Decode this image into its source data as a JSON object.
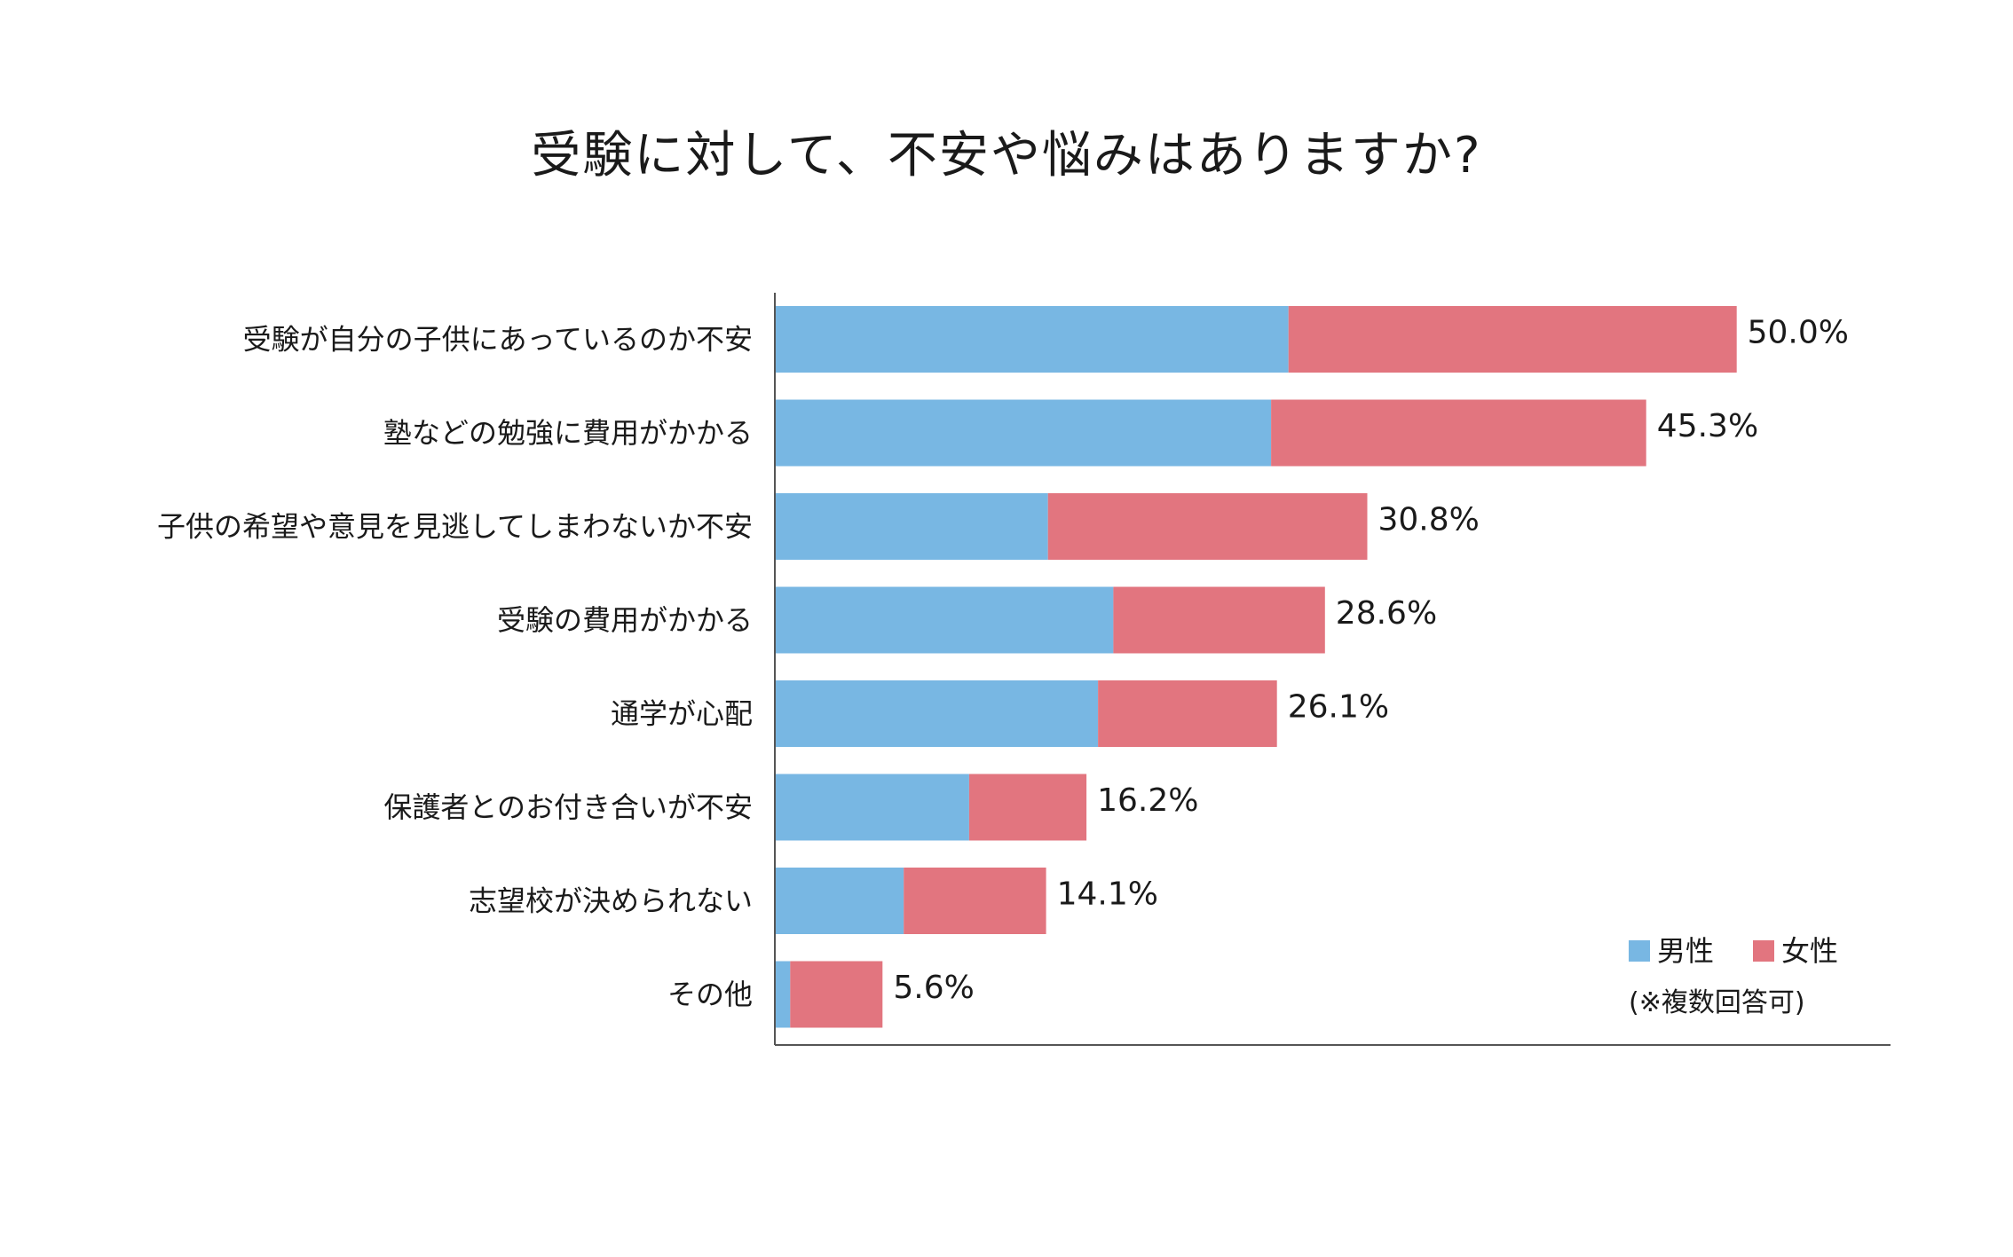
{
  "chart_data": {
    "type": "bar",
    "orientation": "horizontal",
    "stacked": true,
    "title": "受験に対して、不安や悩みはありますか?",
    "categories": [
      "受験が自分の子供にあっているのか不安",
      "塾などの勉強に費用がかかる",
      "子供の希望や意見を見逃してしまわないか不安",
      "受験の費用がかかる",
      "通学が心配",
      "保護者とのお付き合いが不安",
      "志望校が決められない",
      "その他"
    ],
    "series": [
      {
        "name": "男性",
        "color": "#78b7e3",
        "values": [
          26.7,
          25.8,
          14.2,
          17.6,
          16.8,
          10.1,
          6.7,
          0.8
        ]
      },
      {
        "name": "女性",
        "color": "#e2757f",
        "values": [
          23.3,
          19.5,
          16.6,
          11.0,
          9.3,
          6.1,
          7.4,
          4.8
        ]
      }
    ],
    "totals_labels": [
      "50.0%",
      "45.3%",
      "30.8%",
      "28.6%",
      "26.1%",
      "16.2%",
      "14.1%",
      "5.6%"
    ],
    "totals": [
      50.0,
      45.3,
      30.8,
      28.6,
      26.1,
      16.2,
      14.1,
      5.6
    ],
    "xlim": [
      0,
      58
    ],
    "legend_placement": "bottom-right",
    "note": "(※複数回答可)",
    "grid": false
  }
}
